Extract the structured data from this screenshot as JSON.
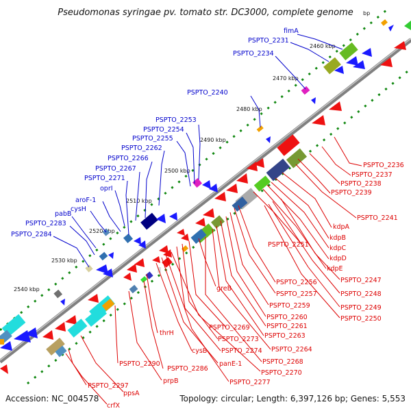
{
  "title": "Pseudomonas syringae pv. tomato str. DC3000, complete genome",
  "footer": {
    "accession": "Accession: NC_004578",
    "summary": "Topology: circular; Length: 6,397,126 bp; Genes: 5,553"
  },
  "colors": {
    "forward_label": "#0000cc",
    "reverse_label": "#dd0000",
    "backbone": "#808080",
    "tick": "#118811"
  },
  "ticks": [
    "2460 kbp",
    "2470 kbp",
    "2480 kbp",
    "2490 kbp",
    "2500 kbp",
    "2510 kbp",
    "2520 kbp",
    "2530 kbp",
    "2540 kbp"
  ],
  "forward_labels": [
    "fimA",
    "PSPTO_2231",
    "PSPTO_2234",
    "PSPTO_2240",
    "PSPTO_2253",
    "PSPTO_2254",
    "PSPTO_2255",
    "PSPTO_2262",
    "PSPTO_2266",
    "PSPTO_2267",
    "PSPTO_2271",
    "oprI",
    "aroF-1",
    "cysH",
    "pabB",
    "PSPTO_2283",
    "PSPTO_2284"
  ],
  "reverse_labels": [
    "PSPTO_2236",
    "PSPTO_2237",
    "PSPTO_2238",
    "PSPTO_2239",
    "PSPTO_2241",
    "kdpA",
    "kdpB",
    "kdpC",
    "kdpD",
    "kdpE",
    "PSPTO_2251",
    "PSPTO_2247",
    "PSPTO_2248",
    "PSPTO_2249",
    "PSPTO_2250",
    "PSPTO_2256",
    "PSPTO_2257",
    "PSPTO_2259",
    "PSPTO_2260",
    "PSPTO_2261",
    "PSPTO_2263",
    "greB",
    "PSPTO_2264",
    "PSPTO_2268",
    "PSPTO_2269",
    "PSPTO_2273",
    "PSPTO_2274",
    "PSPTO_2270",
    "PSPTO_2277",
    "panE-1",
    "cysB",
    "thrH",
    "PSPTO_2286",
    "PSPTO_2290",
    "prpB",
    "PSPTO_2297",
    "ppsA",
    "crfX"
  ]
}
